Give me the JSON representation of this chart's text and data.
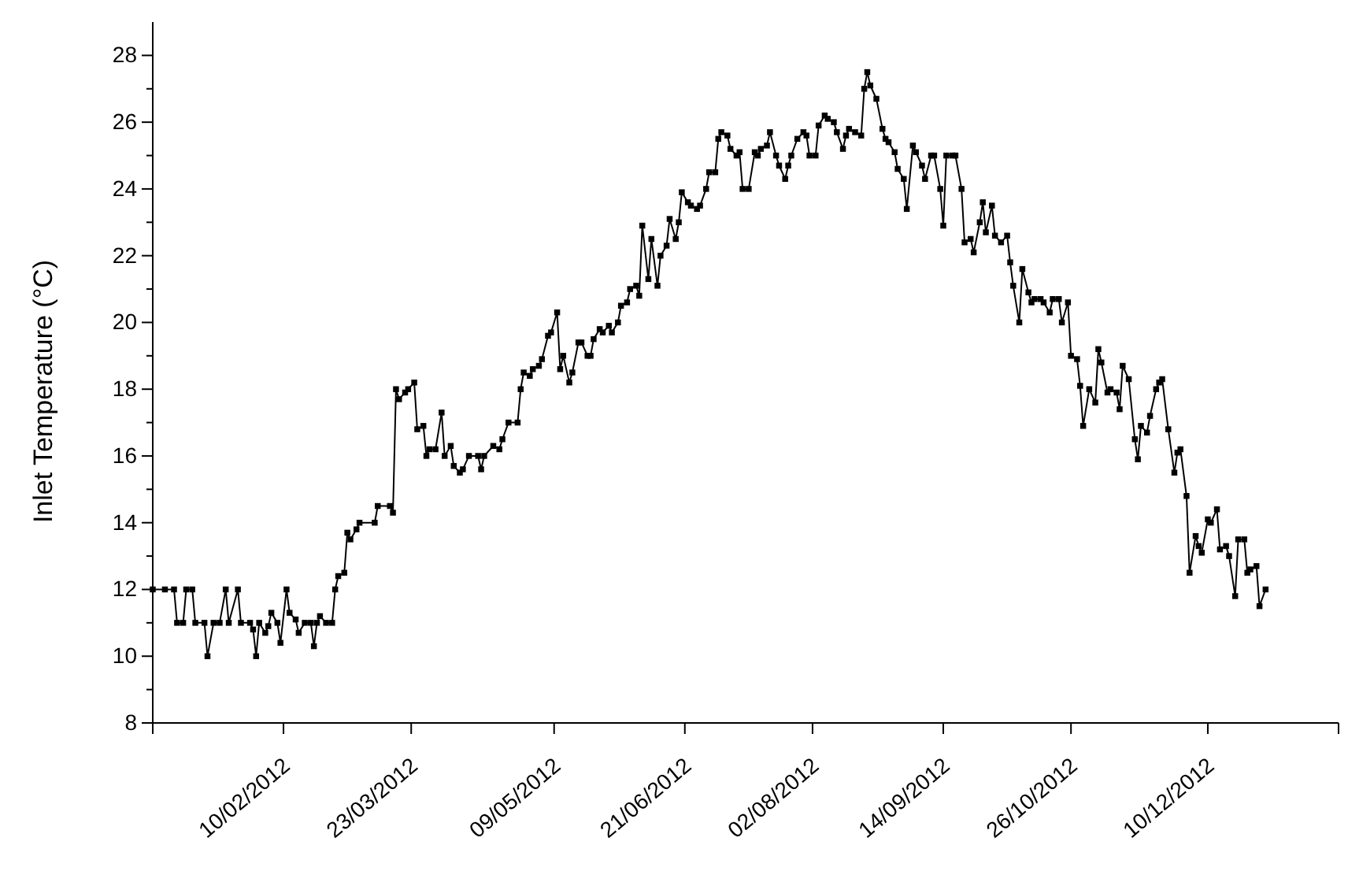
{
  "chart_data": {
    "type": "line",
    "ylabel": "Inlet Temperature (°C)",
    "marker": "square",
    "line_style": "solid",
    "grid": false,
    "xlim": [
      "2011-12-29",
      "2013-01-22"
    ],
    "ylim": [
      8,
      29
    ],
    "xticks": [
      {
        "value": "2011-12-29",
        "label": null
      },
      {
        "value": "2012-02-10",
        "label": "10/02/2012"
      },
      {
        "value": "2012-03-23",
        "label": "23/03/2012"
      },
      {
        "value": "2012-05-09",
        "label": "09/05/2012"
      },
      {
        "value": "2012-06-21",
        "label": "21/06/2012"
      },
      {
        "value": "2012-08-02",
        "label": "02/08/2012"
      },
      {
        "value": "2012-09-14",
        "label": "14/09/2012"
      },
      {
        "value": "2012-10-26",
        "label": "26/10/2012"
      },
      {
        "value": "2012-12-10",
        "label": "10/12/2012"
      },
      {
        "value": "2013-01-22",
        "label": null
      }
    ],
    "yticks": [
      8,
      {
        "value": 9,
        "label": null
      },
      10,
      {
        "value": 11,
        "label": null
      },
      12,
      {
        "value": 13,
        "label": null
      },
      14,
      {
        "value": 15,
        "label": null
      },
      16,
      {
        "value": 17,
        "label": null
      },
      18,
      {
        "value": 19,
        "label": null
      },
      20,
      {
        "value": 21,
        "label": null
      },
      22,
      {
        "value": 23,
        "label": null
      },
      24,
      {
        "value": 25,
        "label": null
      },
      26,
      {
        "value": 27,
        "label": null
      },
      28
    ],
    "x": [
      "2011-12-29",
      "2012-01-02",
      "2012-01-05",
      "2012-01-06",
      "2012-01-08",
      "2012-01-09",
      "2012-01-11",
      "2012-01-12",
      "2012-01-15",
      "2012-01-16",
      "2012-01-18",
      "2012-01-20",
      "2012-01-22",
      "2012-01-23",
      "2012-01-26",
      "2012-01-27",
      "2012-01-30",
      "2012-01-31",
      "2012-02-01",
      "2012-02-02",
      "2012-02-04",
      "2012-02-05",
      "2012-02-06",
      "2012-02-08",
      "2012-02-09",
      "2012-02-11",
      "2012-02-12",
      "2012-02-14",
      "2012-02-15",
      "2012-02-17",
      "2012-02-19",
      "2012-02-20",
      "2012-02-21",
      "2012-02-22",
      "2012-02-24",
      "2012-02-26",
      "2012-02-27",
      "2012-02-28",
      "2012-03-01",
      "2012-03-02",
      "2012-03-03",
      "2012-03-05",
      "2012-03-06",
      "2012-03-11",
      "2012-03-12",
      "2012-03-16",
      "2012-03-17",
      "2012-03-18",
      "2012-03-19",
      "2012-03-21",
      "2012-03-22",
      "2012-03-24",
      "2012-03-25",
      "2012-03-27",
      "2012-03-28",
      "2012-03-29",
      "2012-03-31",
      "2012-04-02",
      "2012-04-03",
      "2012-04-05",
      "2012-04-06",
      "2012-04-08",
      "2012-04-09",
      "2012-04-11",
      "2012-04-14",
      "2012-04-15",
      "2012-04-16",
      "2012-04-19",
      "2012-04-21",
      "2012-04-22",
      "2012-04-24",
      "2012-04-27",
      "2012-04-28",
      "2012-04-29",
      "2012-05-01",
      "2012-05-02",
      "2012-05-04",
      "2012-05-05",
      "2012-05-07",
      "2012-05-08",
      "2012-05-10",
      "2012-05-11",
      "2012-05-12",
      "2012-05-14",
      "2012-05-15",
      "2012-05-17",
      "2012-05-18",
      "2012-05-20",
      "2012-05-21",
      "2012-05-22",
      "2012-05-24",
      "2012-05-25",
      "2012-05-27",
      "2012-05-28",
      "2012-05-30",
      "2012-05-31",
      "2012-06-02",
      "2012-06-03",
      "2012-06-05",
      "2012-06-06",
      "2012-06-07",
      "2012-06-09",
      "2012-06-10",
      "2012-06-12",
      "2012-06-13",
      "2012-06-15",
      "2012-06-16",
      "2012-06-18",
      "2012-06-19",
      "2012-06-20",
      "2012-06-22",
      "2012-06-23",
      "2012-06-25",
      "2012-06-26",
      "2012-06-28",
      "2012-06-29",
      "2012-07-01",
      "2012-07-02",
      "2012-07-03",
      "2012-07-05",
      "2012-07-06",
      "2012-07-08",
      "2012-07-09",
      "2012-07-10",
      "2012-07-12",
      "2012-07-14",
      "2012-07-15",
      "2012-07-16",
      "2012-07-18",
      "2012-07-19",
      "2012-07-21",
      "2012-07-22",
      "2012-07-24",
      "2012-07-25",
      "2012-07-26",
      "2012-07-28",
      "2012-07-30",
      "2012-07-31",
      "2012-08-01",
      "2012-08-03",
      "2012-08-04",
      "2012-08-06",
      "2012-08-07",
      "2012-08-09",
      "2012-08-10",
      "2012-08-12",
      "2012-08-13",
      "2012-08-14",
      "2012-08-16",
      "2012-08-18",
      "2012-08-19",
      "2012-08-20",
      "2012-08-21",
      "2012-08-23",
      "2012-08-25",
      "2012-08-26",
      "2012-08-27",
      "2012-08-29",
      "2012-08-30",
      "2012-09-01",
      "2012-09-02",
      "2012-09-04",
      "2012-09-05",
      "2012-09-07",
      "2012-09-08",
      "2012-09-10",
      "2012-09-11",
      "2012-09-13",
      "2012-09-14",
      "2012-09-15",
      "2012-09-17",
      "2012-09-18",
      "2012-09-20",
      "2012-09-21",
      "2012-09-23",
      "2012-09-24",
      "2012-09-26",
      "2012-09-27",
      "2012-09-28",
      "2012-09-30",
      "2012-10-01",
      "2012-10-03",
      "2012-10-05",
      "2012-10-06",
      "2012-10-07",
      "2012-10-09",
      "2012-10-10",
      "2012-10-12",
      "2012-10-13",
      "2012-10-14",
      "2012-10-16",
      "2012-10-17",
      "2012-10-19",
      "2012-10-20",
      "2012-10-22",
      "2012-10-23",
      "2012-10-25",
      "2012-10-26",
      "2012-10-28",
      "2012-10-29",
      "2012-10-30",
      "2012-11-01",
      "2012-11-03",
      "2012-11-04",
      "2012-11-05",
      "2012-11-07",
      "2012-11-08",
      "2012-11-10",
      "2012-11-11",
      "2012-11-12",
      "2012-11-14",
      "2012-11-16",
      "2012-11-17",
      "2012-11-18",
      "2012-11-20",
      "2012-11-21",
      "2012-11-23",
      "2012-11-24",
      "2012-11-25",
      "2012-11-27",
      "2012-11-29",
      "2012-11-30",
      "2012-12-01",
      "2012-12-03",
      "2012-12-04",
      "2012-12-06",
      "2012-12-07",
      "2012-12-08",
      "2012-12-10",
      "2012-12-11",
      "2012-12-13",
      "2012-12-14",
      "2012-12-16",
      "2012-12-17",
      "2012-12-19",
      "2012-12-20",
      "2012-12-22",
      "2012-12-23",
      "2012-12-24",
      "2012-12-26",
      "2012-12-27",
      "2012-12-29"
    ],
    "series": [
      {
        "color": "#000000",
        "values": [
          12,
          12,
          12,
          11,
          11,
          12,
          12,
          11,
          11,
          10,
          11,
          11,
          12,
          11,
          12,
          11,
          11,
          10.8,
          10,
          11,
          10.7,
          10.9,
          11.3,
          11,
          10.4,
          12,
          11.3,
          11.1,
          10.7,
          11,
          11,
          10.3,
          11,
          11.2,
          11,
          11,
          12,
          12.4,
          12.5,
          13.7,
          13.5,
          13.8,
          14,
          14,
          14.5,
          14.5,
          14.3,
          18,
          17.7,
          17.9,
          18,
          18.2,
          16.8,
          16.9,
          16,
          16.2,
          16.2,
          17.3,
          16,
          16.3,
          15.7,
          15.5,
          15.6,
          16,
          16,
          15.6,
          16,
          16.3,
          16.2,
          16.5,
          17,
          17,
          18,
          18.5,
          18.4,
          18.6,
          18.7,
          18.9,
          19.6,
          19.7,
          20.3,
          18.6,
          19,
          18.2,
          18.5,
          19.4,
          19.4,
          19,
          19,
          19.5,
          19.8,
          19.7,
          19.9,
          19.7,
          20,
          20.5,
          20.6,
          21,
          21.1,
          20.8,
          22.9,
          21.3,
          22.5,
          21.1,
          22,
          22.3,
          23.1,
          22.5,
          23,
          23.9,
          23.6,
          23.5,
          23.4,
          23.5,
          24,
          24.5,
          24.5,
          25.5,
          25.7,
          25.6,
          25.2,
          25,
          25.1,
          24,
          24,
          25.1,
          25,
          25.2,
          25.3,
          25.7,
          25,
          24.7,
          24.3,
          24.7,
          25,
          25.5,
          25.7,
          25.6,
          25,
          25,
          25.9,
          26.2,
          26.1,
          26,
          25.7,
          25.2,
          25.6,
          25.8,
          25.7,
          25.6,
          27,
          27.5,
          27.1,
          26.7,
          25.8,
          25.5,
          25.4,
          25.1,
          24.6,
          24.3,
          23.4,
          25.3,
          25.1,
          24.7,
          24.3,
          25,
          25,
          24,
          22.9,
          25,
          25,
          25,
          24,
          22.4,
          22.5,
          22.1,
          23,
          23.6,
          22.7,
          23.5,
          22.6,
          22.4,
          22.6,
          21.8,
          21.1,
          20,
          21.6,
          20.9,
          20.6,
          20.7,
          20.7,
          20.6,
          20.3,
          20.7,
          20.7,
          20,
          20.6,
          19,
          18.9,
          18.1,
          16.9,
          18,
          17.6,
          19.2,
          18.8,
          17.9,
          18,
          17.9,
          17.4,
          18.7,
          18.3,
          16.5,
          15.9,
          16.9,
          16.7,
          17.2,
          18,
          18.2,
          18.3,
          16.8,
          15.5,
          16.1,
          16.2,
          14.8,
          12.5,
          13.6,
          13.3,
          13.1,
          14.1,
          14,
          14.4,
          13.2,
          13.3,
          13,
          11.8,
          13.5,
          13.5,
          12.5,
          12.6,
          12.7,
          11.5,
          12
        ]
      }
    ]
  }
}
